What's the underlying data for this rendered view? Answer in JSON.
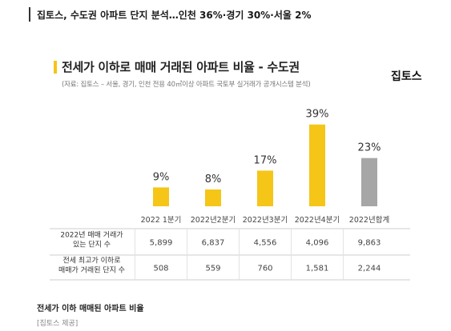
{
  "headline": "집토스, 수도권 아파트 단지 분석…인천 36%·경기 30%·서울 2%",
  "card": {
    "title": "전세가 이하로 매매 거래된 아파트 비율 - 수도권",
    "subtitle": "(자료: 집토스 – 서울, 경기, 인천 전용 40㎡이상 아파트 국토부 실거래가 공개시스템 분석)",
    "brand": "집토스"
  },
  "caption": "전세가 이하 매매된 아파트 비율",
  "credit": "[집토스 제공]",
  "colors": {
    "accent": "#F5C518",
    "total": "#A6A6A6",
    "grid": "#CCCCCC"
  },
  "chart_data": {
    "type": "bar",
    "categories": [
      "2022 1분기",
      "2022년2분기",
      "2022년3분기",
      "2022년4분기",
      "2022년합계"
    ],
    "values": [
      9,
      8,
      17,
      39,
      23
    ],
    "data_labels": [
      "9%",
      "8%",
      "17%",
      "39%",
      "23%"
    ],
    "ylim": [
      0,
      45
    ],
    "table": {
      "rows": [
        {
          "label": [
            "2022년 매매 거래가",
            "있는 단지 수"
          ],
          "values": [
            "5,899",
            "6,837",
            "4,556",
            "4,096",
            "9,863"
          ]
        },
        {
          "label": [
            "전세 최고가 이하로",
            "매매가 거래된 단지 수"
          ],
          "values": [
            "508",
            "559",
            "760",
            "1,581",
            "2,244"
          ]
        }
      ]
    }
  }
}
